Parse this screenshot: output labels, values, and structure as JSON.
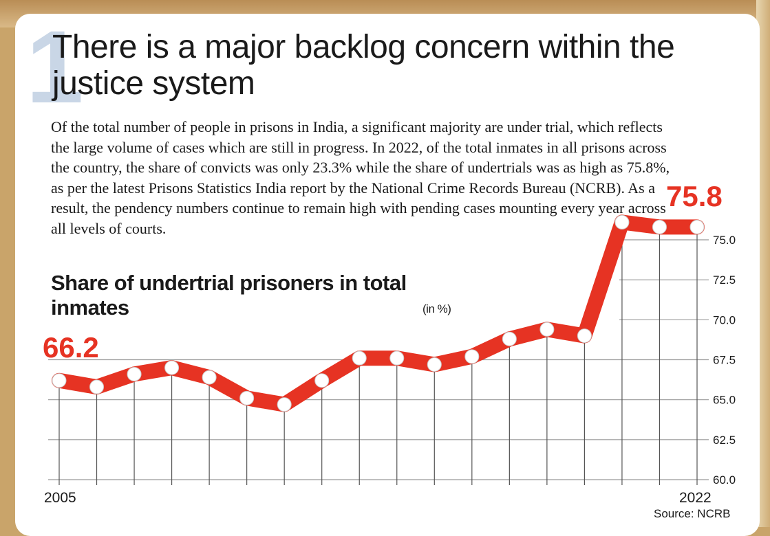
{
  "header": {
    "number": "1",
    "title": "There is a major backlog concern within the justice system"
  },
  "body_text": "Of the total number of people in prisons in India, a significant majority are under trial, which reflects the large volume of cases which are still in progress. In 2022, of the total inmates in all prisons across the country, the share of convicts was only 23.3% while the share of undertrials was as high as 75.8%, as per the latest Prisons Statistics India report by the National Crime Records Bureau (NCRB). As a result, the pendency numbers continue to remain high with pending cases mounting every year across all levels of courts.",
  "source": "Source: NCRB",
  "colors": {
    "line": "#e63323",
    "grid": "#333333",
    "text": "#1a1a1a"
  },
  "chart_data": {
    "type": "line",
    "title": "Share of undertrial prisoners in total inmates",
    "unit": "(in %)",
    "x": [
      2005,
      2006,
      2007,
      2008,
      2009,
      2010,
      2011,
      2012,
      2013,
      2014,
      2015,
      2016,
      2017,
      2018,
      2019,
      2020,
      2021,
      2022
    ],
    "x_tick_labels": [
      "2005",
      "2022"
    ],
    "series": [
      {
        "values": [
          66.2,
          65.8,
          66.6,
          67.0,
          66.4,
          65.1,
          64.7,
          66.2,
          67.6,
          67.6,
          67.2,
          67.7,
          68.8,
          69.4,
          69.0,
          76.1,
          75.8,
          75.8
        ]
      }
    ],
    "ylim": [
      60.0,
      75.0
    ],
    "y_ticks": [
      "60.0",
      "62.5",
      "65.0",
      "67.5",
      "70.0",
      "72.5",
      "75.0"
    ],
    "annotations": {
      "start_label": "66.2",
      "end_label": "75.8"
    },
    "grid": true
  }
}
